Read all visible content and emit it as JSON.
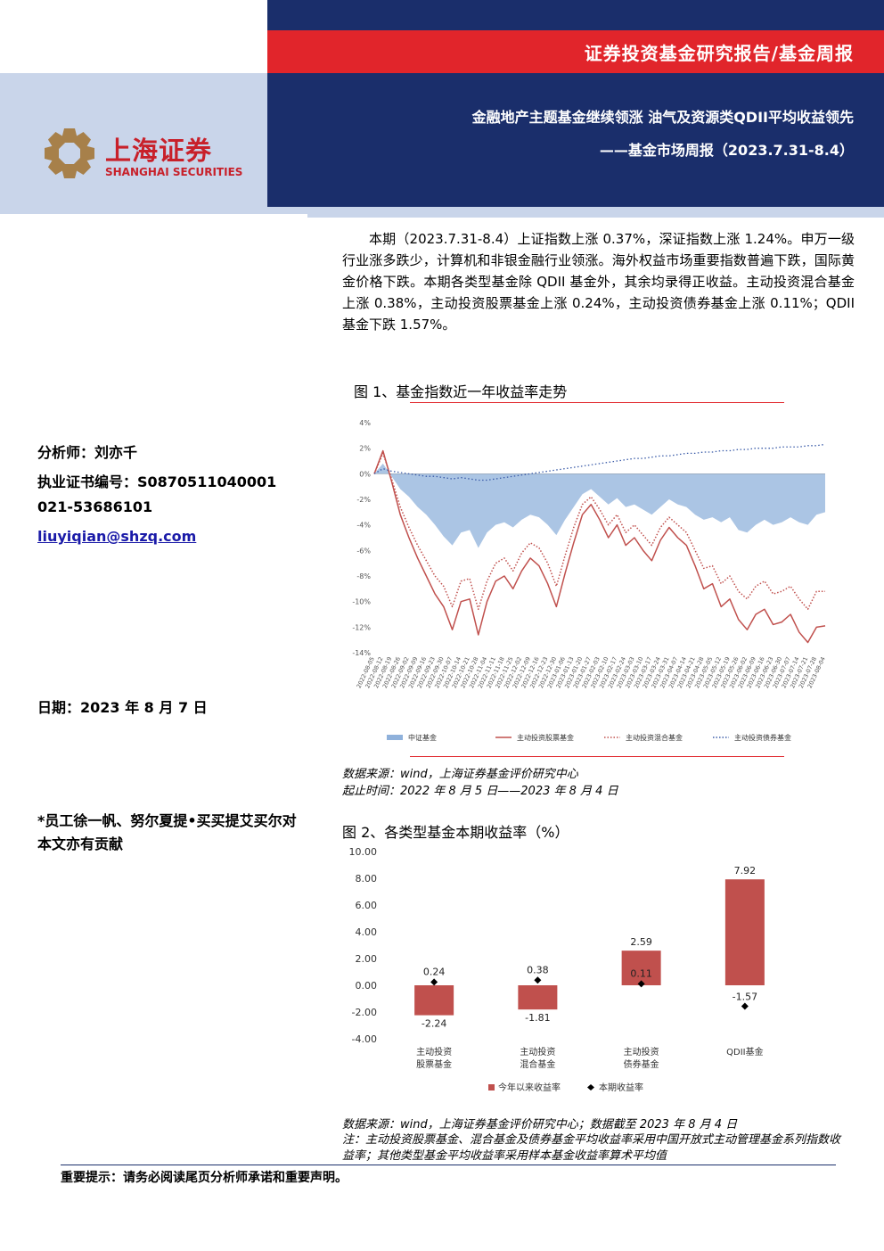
{
  "header": {
    "report_type": "证券投资基金研究报告/基金周报",
    "headline": "金融地产主题基金继续领涨 油气及资源类QDII平均收益领先",
    "subheadline": "——基金市场周报（2023.7.31-8.4）",
    "logo_cn": "上海证券",
    "logo_en": "SHANGHAI SECURITIES",
    "colors": {
      "navy": "#1a2e6b",
      "red": "#e1252b",
      "light": "#c9d5ea"
    }
  },
  "summary": "本期（2023.7.31-8.4）上证指数上涨 0.37%，深证指数上涨 1.24%。申万一级行业涨多跌少，计算机和非银金融行业领涨。海外权益市场重要指数普遍下跌，国际黄金价格下跌。本期各类型基金除 QDII 基金外，其余均录得正收益。主动投资混合基金上涨 0.38%，主动投资股票基金上涨 0.24%，主动投资债券基金上涨 0.11%；QDII 基金下跌 1.57%。",
  "sidebar": {
    "analyst": "分析师：刘亦千",
    "cert": "执业证书编号：S0870511040001",
    "phone": "021-53686101",
    "email": "liuyiqian@shzq.com",
    "date": "日期：2023 年 8 月 7 日",
    "contrib": "*员工徐一帆、努尔夏提•买买提艾买尔对本文亦有贡献"
  },
  "figure1": {
    "title": "图 1、基金指数近一年收益率走势",
    "source": "数据来源：wind，上海证券基金评价研究中心",
    "range": "起止时间：2022 年 8 月 5 日——2023 年 8 月 4 日",
    "chart_data": {
      "type": "line",
      "y_ticks": [
        "4%",
        "2%",
        "0%",
        "-2%",
        "-4%",
        "-6%",
        "-8%",
        "-10%",
        "-12%",
        "-14%"
      ],
      "ylim": [
        -14,
        4
      ],
      "x_ticks": [
        "2022-08-05",
        "2022-08-12",
        "2022-08-19",
        "2022-08-26",
        "2022-09-02",
        "2022-09-09",
        "2022-09-16",
        "2022-09-23",
        "2022-09-30",
        "2022-10-07",
        "2022-10-14",
        "2022-10-21",
        "2022-10-28",
        "2022-11-04",
        "2022-11-11",
        "2022-11-18",
        "2022-11-25",
        "2022-12-02",
        "2022-12-09",
        "2022-12-16",
        "2022-12-23",
        "2022-12-30",
        "2023-01-06",
        "2023-01-13",
        "2023-01-20",
        "2023-01-27",
        "2023-02-03",
        "2023-02-10",
        "2023-02-17",
        "2023-02-24",
        "2023-03-03",
        "2023-03-10",
        "2023-03-17",
        "2023-03-24",
        "2023-03-31",
        "2023-04-07",
        "2023-04-14",
        "2023-04-21",
        "2023-04-28",
        "2023-05-05",
        "2023-05-12",
        "2023-05-19",
        "2023-05-26",
        "2023-06-02",
        "2023-06-09",
        "2023-06-16",
        "2023-06-23",
        "2023-06-30",
        "2023-07-07",
        "2023-07-14",
        "2023-07-21",
        "2023-07-28",
        "2023-08-04"
      ],
      "series": [
        {
          "name": "中证基金",
          "style": "area",
          "color": "#8fb1db",
          "values": [
            0,
            0.8,
            -0.2,
            -1.2,
            -1.8,
            -2.6,
            -3.2,
            -4.0,
            -4.9,
            -5.6,
            -4.6,
            -4.4,
            -5.8,
            -4.6,
            -4.0,
            -3.8,
            -4.2,
            -3.6,
            -3.2,
            -3.4,
            -4.0,
            -4.8,
            -3.6,
            -2.6,
            -1.6,
            -1.2,
            -1.8,
            -2.4,
            -1.9,
            -2.6,
            -2.4,
            -2.8,
            -3.2,
            -2.6,
            -2.0,
            -2.4,
            -2.6,
            -3.2,
            -3.6,
            -3.4,
            -3.8,
            -3.4,
            -4.4,
            -4.6,
            -4.0,
            -3.6,
            -4.0,
            -3.8,
            -3.4,
            -3.8,
            -4.0,
            -3.2,
            -3.0
          ]
        },
        {
          "name": "主动投资股票基金",
          "style": "solid",
          "color": "#c0504d",
          "values": [
            0,
            1.8,
            -0.6,
            -3.2,
            -5.0,
            -6.6,
            -8.0,
            -9.4,
            -10.4,
            -12.2,
            -10.0,
            -9.8,
            -12.6,
            -10.0,
            -8.4,
            -8.0,
            -9.0,
            -7.6,
            -6.6,
            -7.2,
            -8.6,
            -10.4,
            -7.8,
            -5.4,
            -3.2,
            -2.4,
            -3.6,
            -5.0,
            -4.0,
            -5.6,
            -5.0,
            -6.0,
            -6.8,
            -5.2,
            -4.2,
            -5.0,
            -5.6,
            -7.2,
            -9.0,
            -8.6,
            -10.4,
            -9.8,
            -11.4,
            -12.2,
            -11.0,
            -10.6,
            -11.8,
            -11.6,
            -11.0,
            -12.4,
            -13.2,
            -12.0,
            -11.9
          ]
        },
        {
          "name": "主动投资混合基金",
          "style": "dotted",
          "color": "#c0504d",
          "values": [
            0,
            1.6,
            -0.4,
            -2.6,
            -4.2,
            -5.6,
            -6.8,
            -8.0,
            -8.8,
            -10.4,
            -8.4,
            -8.2,
            -10.6,
            -8.4,
            -7.0,
            -6.6,
            -7.6,
            -6.2,
            -5.4,
            -5.8,
            -7.0,
            -8.8,
            -6.4,
            -4.2,
            -2.4,
            -1.8,
            -2.8,
            -4.0,
            -3.2,
            -4.6,
            -4.0,
            -4.8,
            -5.6,
            -4.2,
            -3.4,
            -4.0,
            -4.6,
            -6.0,
            -7.4,
            -7.2,
            -8.6,
            -8.0,
            -9.2,
            -9.8,
            -8.8,
            -8.4,
            -9.4,
            -9.2,
            -8.8,
            -9.8,
            -10.6,
            -9.2,
            -9.2
          ]
        },
        {
          "name": "主动投资债券基金",
          "style": "dashed",
          "color": "#3a5ba8",
          "values": [
            0,
            0.4,
            0.2,
            0.1,
            0,
            -0.1,
            -0.2,
            -0.2,
            -0.3,
            -0.4,
            -0.3,
            -0.4,
            -0.5,
            -0.5,
            -0.4,
            -0.3,
            -0.2,
            -0.1,
            0,
            0.1,
            0.2,
            0.3,
            0.4,
            0.5,
            0.6,
            0.7,
            0.8,
            0.9,
            1.0,
            1.1,
            1.2,
            1.2,
            1.3,
            1.4,
            1.4,
            1.5,
            1.6,
            1.6,
            1.7,
            1.7,
            1.8,
            1.8,
            1.9,
            1.9,
            2.0,
            2.0,
            2.0,
            2.1,
            2.1,
            2.1,
            2.2,
            2.2,
            2.3
          ]
        }
      ],
      "legend": [
        "中证基金",
        "主动投资股票基金",
        "主动投资混合基金",
        "主动投资债券基金"
      ],
      "legend_position": "bottom"
    }
  },
  "figure2": {
    "title": "图 2、各类型基金本期收益率（%）",
    "source": "数据来源：wind，上海证券基金评价研究中心；数据截至 2023 年 8 月 4 日",
    "note": "注：主动投资股票基金、混合基金及债券基金平均收益率采用中国开放式主动管理基金系列指数收益率；其他类型基金平均收益率采用样本基金收益率算术平均值",
    "chart_data": {
      "type": "bar",
      "categories": [
        [
          "主动投资",
          "股票基金"
        ],
        [
          "主动投资",
          "混合基金"
        ],
        [
          "主动投资",
          "债券基金"
        ],
        [
          "QDII基金"
        ]
      ],
      "y_ticks": [
        "10.00",
        "8.00",
        "6.00",
        "4.00",
        "2.00",
        "0.00",
        "-2.00",
        "-4.00"
      ],
      "ylim": [
        -4,
        10
      ],
      "series": [
        {
          "name": "今年以来收益率",
          "style": "bar",
          "color": "#c0504d",
          "values": [
            -2.24,
            -1.81,
            2.59,
            7.92
          ],
          "labels": [
            "-2.24",
            "-1.81",
            "2.59",
            "7.92"
          ]
        },
        {
          "name": "本期收益率",
          "style": "marker",
          "color": "#000000",
          "values": [
            0.24,
            0.38,
            0.11,
            -1.57
          ],
          "labels": [
            "0.24",
            "0.38",
            "0.11",
            "-1.57"
          ]
        }
      ],
      "legend_position": "bottom"
    }
  },
  "notice": "重要提示：请务必阅读尾页分析师承诺和重要声明。"
}
